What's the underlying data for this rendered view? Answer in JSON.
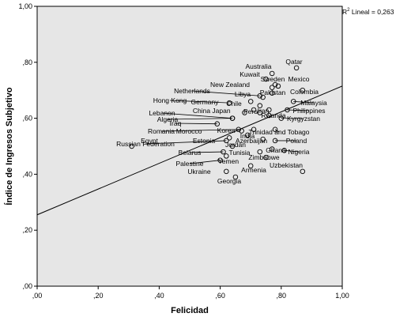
{
  "chart_data": {
    "type": "scatter",
    "xlabel": "Felicidad",
    "ylabel": "Índice de Ingresos Subjetivo",
    "xlim": [
      0,
      1
    ],
    "ylim": [
      0,
      1
    ],
    "x_ticks": [
      ",00",
      ",20",
      ",40",
      ",60",
      ",80",
      "1,00"
    ],
    "y_ticks": [
      ",00",
      ",20",
      ",40",
      ",60",
      ",80",
      "1,00"
    ],
    "grid": false,
    "plot_background": "#e6e6e6",
    "point_color": "#000000",
    "fit_line": {
      "intercept": 0.255,
      "slope": 0.46,
      "color": "#000000"
    },
    "r2_label": {
      "prefix": "R",
      "superscript": "2",
      "text": " Lineal = 0,263"
    },
    "points": [
      {
        "label": "Qatar",
        "x": 0.85,
        "y": 0.78
      },
      {
        "label": "Australia",
        "x": 0.77,
        "y": 0.76
      },
      {
        "label": "Kuwait",
        "x": 0.75,
        "y": 0.74
      },
      {
        "label": "Sweden",
        "x": 0.78,
        "y": 0.72
      },
      {
        "label": "Mexico",
        "x": 0.79,
        "y": 0.715
      },
      {
        "label": "New Zealand",
        "x": 0.77,
        "y": 0.71
      },
      {
        "label": "Netherlands",
        "x": 0.73,
        "y": 0.68
      },
      {
        "label": "Libya",
        "x": 0.74,
        "y": 0.675
      },
      {
        "label": "Pakistan",
        "x": 0.77,
        "y": 0.69
      },
      {
        "label": "Colombia",
        "x": 0.87,
        "y": 0.7
      },
      {
        "label": "Hong Kong",
        "x": 0.63,
        "y": 0.655
      },
      {
        "label": "Germany",
        "x": 0.7,
        "y": 0.66
      },
      {
        "label": "Chile",
        "x": 0.73,
        "y": 0.645
      },
      {
        "label": "Malaysia",
        "x": 0.84,
        "y": 0.66
      },
      {
        "label": "Lebanon",
        "x": 0.64,
        "y": 0.6
      },
      {
        "label": "China",
        "x": 0.68,
        "y": 0.62
      },
      {
        "label": "Japan",
        "x": 0.71,
        "y": 0.63
      },
      {
        "label": "Peru",
        "x": 0.73,
        "y": 0.62
      },
      {
        "label": "Iran",
        "x": 0.76,
        "y": 0.63
      },
      {
        "label": "Philippines",
        "x": 0.82,
        "y": 0.63
      },
      {
        "label": "Algeria",
        "x": 0.64,
        "y": 0.6
      },
      {
        "label": "Rwanda",
        "x": 0.76,
        "y": 0.61
      },
      {
        "label": "Kyrgyzstan",
        "x": 0.8,
        "y": 0.6
      },
      {
        "label": "Iraq",
        "x": 0.59,
        "y": 0.58
      },
      {
        "label": "Romania",
        "x": 0.66,
        "y": 0.56
      },
      {
        "label": "Morocco",
        "x": 0.67,
        "y": 0.555
      },
      {
        "label": "Korea",
        "x": 0.71,
        "y": 0.56
      },
      {
        "label": "Trinidad and Tobago",
        "x": 0.78,
        "y": 0.56
      },
      {
        "label": "India",
        "x": 0.69,
        "y": 0.54
      },
      {
        "label": "Egypt",
        "x": 0.31,
        "y": 0.5
      },
      {
        "label": "Russian Federation",
        "x": 0.62,
        "y": 0.52
      },
      {
        "label": "Estonia",
        "x": 0.63,
        "y": 0.53
      },
      {
        "label": "Azerbaijan",
        "x": 0.74,
        "y": 0.525
      },
      {
        "label": "Poland",
        "x": 0.78,
        "y": 0.52
      },
      {
        "label": "Jordan",
        "x": 0.64,
        "y": 0.5
      },
      {
        "label": "Ghana",
        "x": 0.77,
        "y": 0.49
      },
      {
        "label": "Nigeria",
        "x": 0.81,
        "y": 0.485
      },
      {
        "label": "Belarus",
        "x": 0.61,
        "y": 0.48
      },
      {
        "label": "Tunisia",
        "x": 0.73,
        "y": 0.48
      },
      {
        "label": "Zimbabwe",
        "x": 0.75,
        "y": 0.46
      },
      {
        "label": "Yemen",
        "x": 0.62,
        "y": 0.465
      },
      {
        "label": "Palestine",
        "x": 0.6,
        "y": 0.45
      },
      {
        "label": "Uzbekistan",
        "x": 0.87,
        "y": 0.41
      },
      {
        "label": "Armenia",
        "x": 0.7,
        "y": 0.43
      },
      {
        "label": "Ukraine",
        "x": 0.62,
        "y": 0.41
      },
      {
        "label": "Georgia",
        "x": 0.65,
        "y": 0.39
      }
    ]
  }
}
